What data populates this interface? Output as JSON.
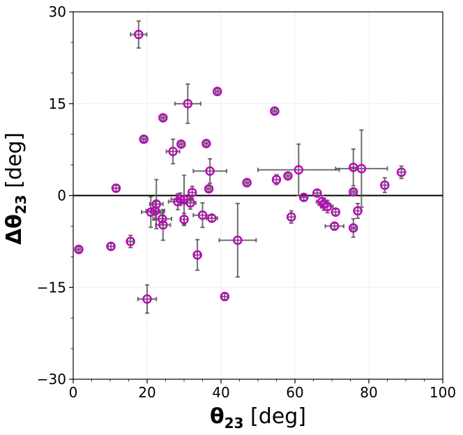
{
  "chart_data": {
    "type": "scatter",
    "title": "",
    "xlabel": {
      "symbol": "θ",
      "subscript": "23",
      "unit": " [deg]"
    },
    "ylabel": {
      "prefix": "Δθ",
      "subscript": "23",
      "unit": " [deg]"
    },
    "xlim": [
      0,
      100
    ],
    "ylim": [
      -30,
      30
    ],
    "x_ticks": [
      0,
      20,
      40,
      60,
      80,
      100
    ],
    "x_tick_labels": [
      "0",
      "20",
      "40",
      "60",
      "80",
      "100"
    ],
    "y_ticks": [
      -30,
      -15,
      0,
      15,
      30
    ],
    "y_tick_labels": [
      "−30",
      "−15",
      "0",
      "15",
      "30"
    ],
    "grid": true,
    "zero_line": true,
    "marker_color": "#c000c0",
    "errorbar_color": "#555555",
    "points": [
      {
        "x": 17.7,
        "y": 26.3,
        "xerr": 2.2,
        "yerr": 2.2
      },
      {
        "x": 39.0,
        "y": 17.0,
        "xerr": 0.5,
        "yerr": 0.5
      },
      {
        "x": 31.0,
        "y": 15.0,
        "xerr": 3.5,
        "yerr": 3.2
      },
      {
        "x": 54.5,
        "y": 13.8,
        "xerr": 0.5,
        "yerr": 0.5
      },
      {
        "x": 24.3,
        "y": 12.7,
        "xerr": 0.5,
        "yerr": 0.5
      },
      {
        "x": 19.1,
        "y": 9.2,
        "xerr": 0.5,
        "yerr": 0.5
      },
      {
        "x": 29.2,
        "y": 8.4,
        "xerr": 0.5,
        "yerr": 0.5
      },
      {
        "x": 36.0,
        "y": 8.5,
        "xerr": 0.5,
        "yerr": 0.5
      },
      {
        "x": 27.0,
        "y": 7.2,
        "xerr": 1.8,
        "yerr": 2.0
      },
      {
        "x": 37.0,
        "y": 4.0,
        "xerr": 4.5,
        "yerr": 2.0
      },
      {
        "x": 75.8,
        "y": 4.6,
        "xerr": 1.0,
        "yerr": 3.0
      },
      {
        "x": 78.0,
        "y": 4.4,
        "xerr": 7.0,
        "yerr": 6.3
      },
      {
        "x": 61.0,
        "y": 4.2,
        "xerr": 11.0,
        "yerr": 4.2
      },
      {
        "x": 88.8,
        "y": 3.8,
        "xerr": 1.0,
        "yerr": 1.0
      },
      {
        "x": 58.1,
        "y": 3.2,
        "xerr": 0.5,
        "yerr": 0.5
      },
      {
        "x": 55.0,
        "y": 2.6,
        "xerr": 0.9,
        "yerr": 0.8
      },
      {
        "x": 47.0,
        "y": 2.1,
        "xerr": 0.5,
        "yerr": 0.5
      },
      {
        "x": 84.3,
        "y": 1.7,
        "xerr": 1.0,
        "yerr": 1.2
      },
      {
        "x": 11.6,
        "y": 1.2,
        "xerr": 0.8,
        "yerr": 0.5
      },
      {
        "x": 36.7,
        "y": 1.1,
        "xerr": 0.5,
        "yerr": 0.5
      },
      {
        "x": 32.2,
        "y": 0.5,
        "xerr": 1.0,
        "yerr": 1.0
      },
      {
        "x": 66.0,
        "y": 0.4,
        "xerr": 1.0,
        "yerr": 0.5
      },
      {
        "x": 75.8,
        "y": 0.6,
        "xerr": 0.5,
        "yerr": 0.5
      },
      {
        "x": 62.4,
        "y": -0.3,
        "xerr": 0.8,
        "yerr": 0.5
      },
      {
        "x": 29.0,
        "y": -0.6,
        "xerr": 2.5,
        "yerr": 1.0
      },
      {
        "x": 28.3,
        "y": -1.0,
        "xerr": 2.5,
        "yerr": 1.3
      },
      {
        "x": 30.0,
        "y": -0.7,
        "xerr": 2.0,
        "yerr": 4.0
      },
      {
        "x": 31.7,
        "y": -1.2,
        "xerr": 1.5,
        "yerr": 1.0
      },
      {
        "x": 67.3,
        "y": -1.0,
        "xerr": 1.5,
        "yerr": 1.0
      },
      {
        "x": 67.8,
        "y": -1.4,
        "xerr": 1.5,
        "yerr": 1.0
      },
      {
        "x": 68.8,
        "y": -1.8,
        "xerr": 1.5,
        "yerr": 1.0
      },
      {
        "x": 22.5,
        "y": -1.4,
        "xerr": 1.8,
        "yerr": 4.0
      },
      {
        "x": 22.2,
        "y": -2.5,
        "xerr": 2.5,
        "yerr": 1.5
      },
      {
        "x": 21.0,
        "y": -2.7,
        "xerr": 2.5,
        "yerr": 2.5
      },
      {
        "x": 35.0,
        "y": -3.2,
        "xerr": 2.5,
        "yerr": 2.0
      },
      {
        "x": 37.5,
        "y": -3.7,
        "xerr": 1.5,
        "yerr": 0.5
      },
      {
        "x": 59.0,
        "y": -3.5,
        "xerr": 1.0,
        "yerr": 1.0
      },
      {
        "x": 71.0,
        "y": -2.7,
        "xerr": 1.0,
        "yerr": 0.5
      },
      {
        "x": 77.0,
        "y": -2.5,
        "xerr": 1.0,
        "yerr": 1.2
      },
      {
        "x": 24.1,
        "y": -3.8,
        "xerr": 2.5,
        "yerr": 1.0
      },
      {
        "x": 30.0,
        "y": -3.9,
        "xerr": 1.0,
        "yerr": 1.0
      },
      {
        "x": 24.3,
        "y": -4.8,
        "xerr": 2.0,
        "yerr": 2.5
      },
      {
        "x": 70.7,
        "y": -5.0,
        "xerr": 2.5,
        "yerr": 0.5
      },
      {
        "x": 75.8,
        "y": -5.3,
        "xerr": 0.5,
        "yerr": 1.5
      },
      {
        "x": 44.5,
        "y": -7.3,
        "xerr": 5.0,
        "yerr": 6.0
      },
      {
        "x": 15.5,
        "y": -7.5,
        "xerr": 0.8,
        "yerr": 1.0
      },
      {
        "x": 10.2,
        "y": -8.3,
        "xerr": 0.8,
        "yerr": 0.5
      },
      {
        "x": 1.5,
        "y": -8.8,
        "xerr": 0.5,
        "yerr": 0.5
      },
      {
        "x": 33.6,
        "y": -9.7,
        "xerr": 0.8,
        "yerr": 2.5
      },
      {
        "x": 41.0,
        "y": -16.5,
        "xerr": 0.8,
        "yerr": 0.5
      },
      {
        "x": 20.0,
        "y": -16.9,
        "xerr": 2.5,
        "yerr": 2.3
      }
    ]
  }
}
